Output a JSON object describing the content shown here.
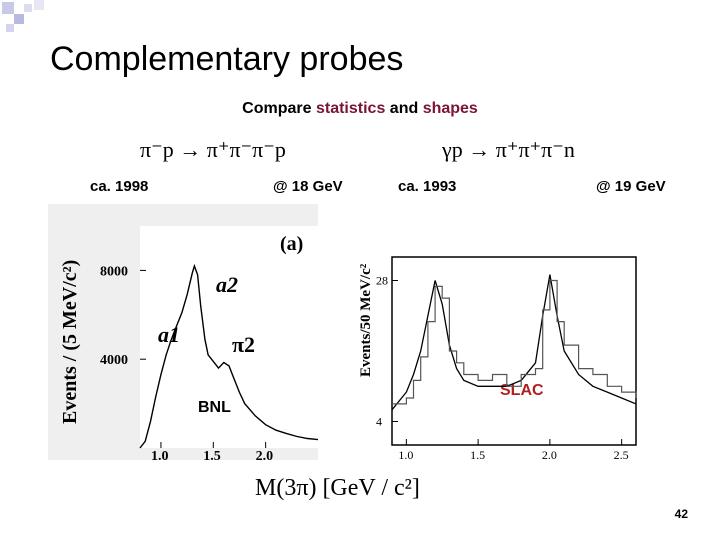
{
  "slide": {
    "title": "Complementary probes",
    "subtitle_parts": [
      "Compare ",
      "statistics",
      " and ",
      "shapes"
    ],
    "page_number": "42"
  },
  "reactions": {
    "left": "π⁻p → π⁺π⁻π⁻p",
    "right": "γp → π⁺π⁺π⁻n"
  },
  "experiments": {
    "left_year": "ca. 1998",
    "left_energy": "@ 18 GeV",
    "right_year": "ca. 1993",
    "right_energy": "@ 19 GeV"
  },
  "chart_data": [
    {
      "type": "line",
      "panel_label": "(a)",
      "ylabel": "Events / (5 MeV/c²)",
      "x_ticks": [
        "1.0",
        "1.5",
        "2.0"
      ],
      "y_ticks": [
        "4000",
        "8000"
      ],
      "xlim": [
        0.8,
        2.5
      ],
      "ylim": [
        0,
        10000
      ],
      "annotations": [
        "a2",
        "a1",
        "π2",
        "BNL"
      ],
      "series": [
        {
          "x": [
            0.8,
            0.85,
            0.9,
            0.95,
            1.0,
            1.05,
            1.1,
            1.15,
            1.2,
            1.25,
            1.3,
            1.32,
            1.35,
            1.38,
            1.42,
            1.45,
            1.5,
            1.55,
            1.6,
            1.65,
            1.7,
            1.75,
            1.8,
            1.9,
            2.0,
            2.1,
            2.2,
            2.3,
            2.4,
            2.5
          ],
          "y": [
            0,
            300,
            1200,
            2300,
            3300,
            4200,
            4900,
            5500,
            6100,
            6900,
            7900,
            8200,
            7800,
            6400,
            4900,
            4200,
            3900,
            3600,
            3850,
            3700,
            3100,
            2500,
            2000,
            1450,
            1050,
            800,
            650,
            520,
            430,
            380
          ]
        }
      ]
    },
    {
      "type": "line",
      "ylabel": "Events/50 MeV/c²",
      "x_ticks": [
        "1.0",
        "1.5",
        "2.0",
        "2.5"
      ],
      "y_ticks": [
        "4",
        "28"
      ],
      "xlim": [
        0.9,
        2.6
      ],
      "ylim": [
        0,
        32
      ],
      "annotations": [
        "SLAC"
      ],
      "series": [
        {
          "x": [
            0.9,
            1.0,
            1.05,
            1.1,
            1.15,
            1.2,
            1.25,
            1.3,
            1.35,
            1.4,
            1.5,
            1.6,
            1.7,
            1.8,
            1.9,
            1.95,
            2.0,
            2.05,
            2.1,
            2.2,
            2.3,
            2.4,
            2.5,
            2.6
          ],
          "y": [
            6,
            9,
            12,
            16,
            22,
            28,
            24,
            17,
            13,
            11,
            10,
            10,
            10,
            11,
            14,
            22,
            29,
            22,
            16,
            12,
            10,
            9,
            8,
            7
          ]
        },
        {
          "x": [
            0.9,
            1.0,
            1.05,
            1.1,
            1.15,
            1.2,
            1.25,
            1.3,
            1.35,
            1.4,
            1.5,
            1.6,
            1.7,
            1.8,
            1.9,
            1.95,
            2.0,
            2.05,
            2.1,
            2.2,
            2.3,
            2.4,
            2.5,
            2.6
          ],
          "y": [
            7,
            8,
            11,
            15,
            21,
            27,
            25,
            16,
            14,
            12,
            11,
            12,
            10,
            12,
            13,
            23,
            28,
            21,
            17,
            13,
            12,
            10,
            9,
            8
          ]
        }
      ]
    }
  ],
  "shared_xlabel": "M(3π)   [GeV / c²]"
}
